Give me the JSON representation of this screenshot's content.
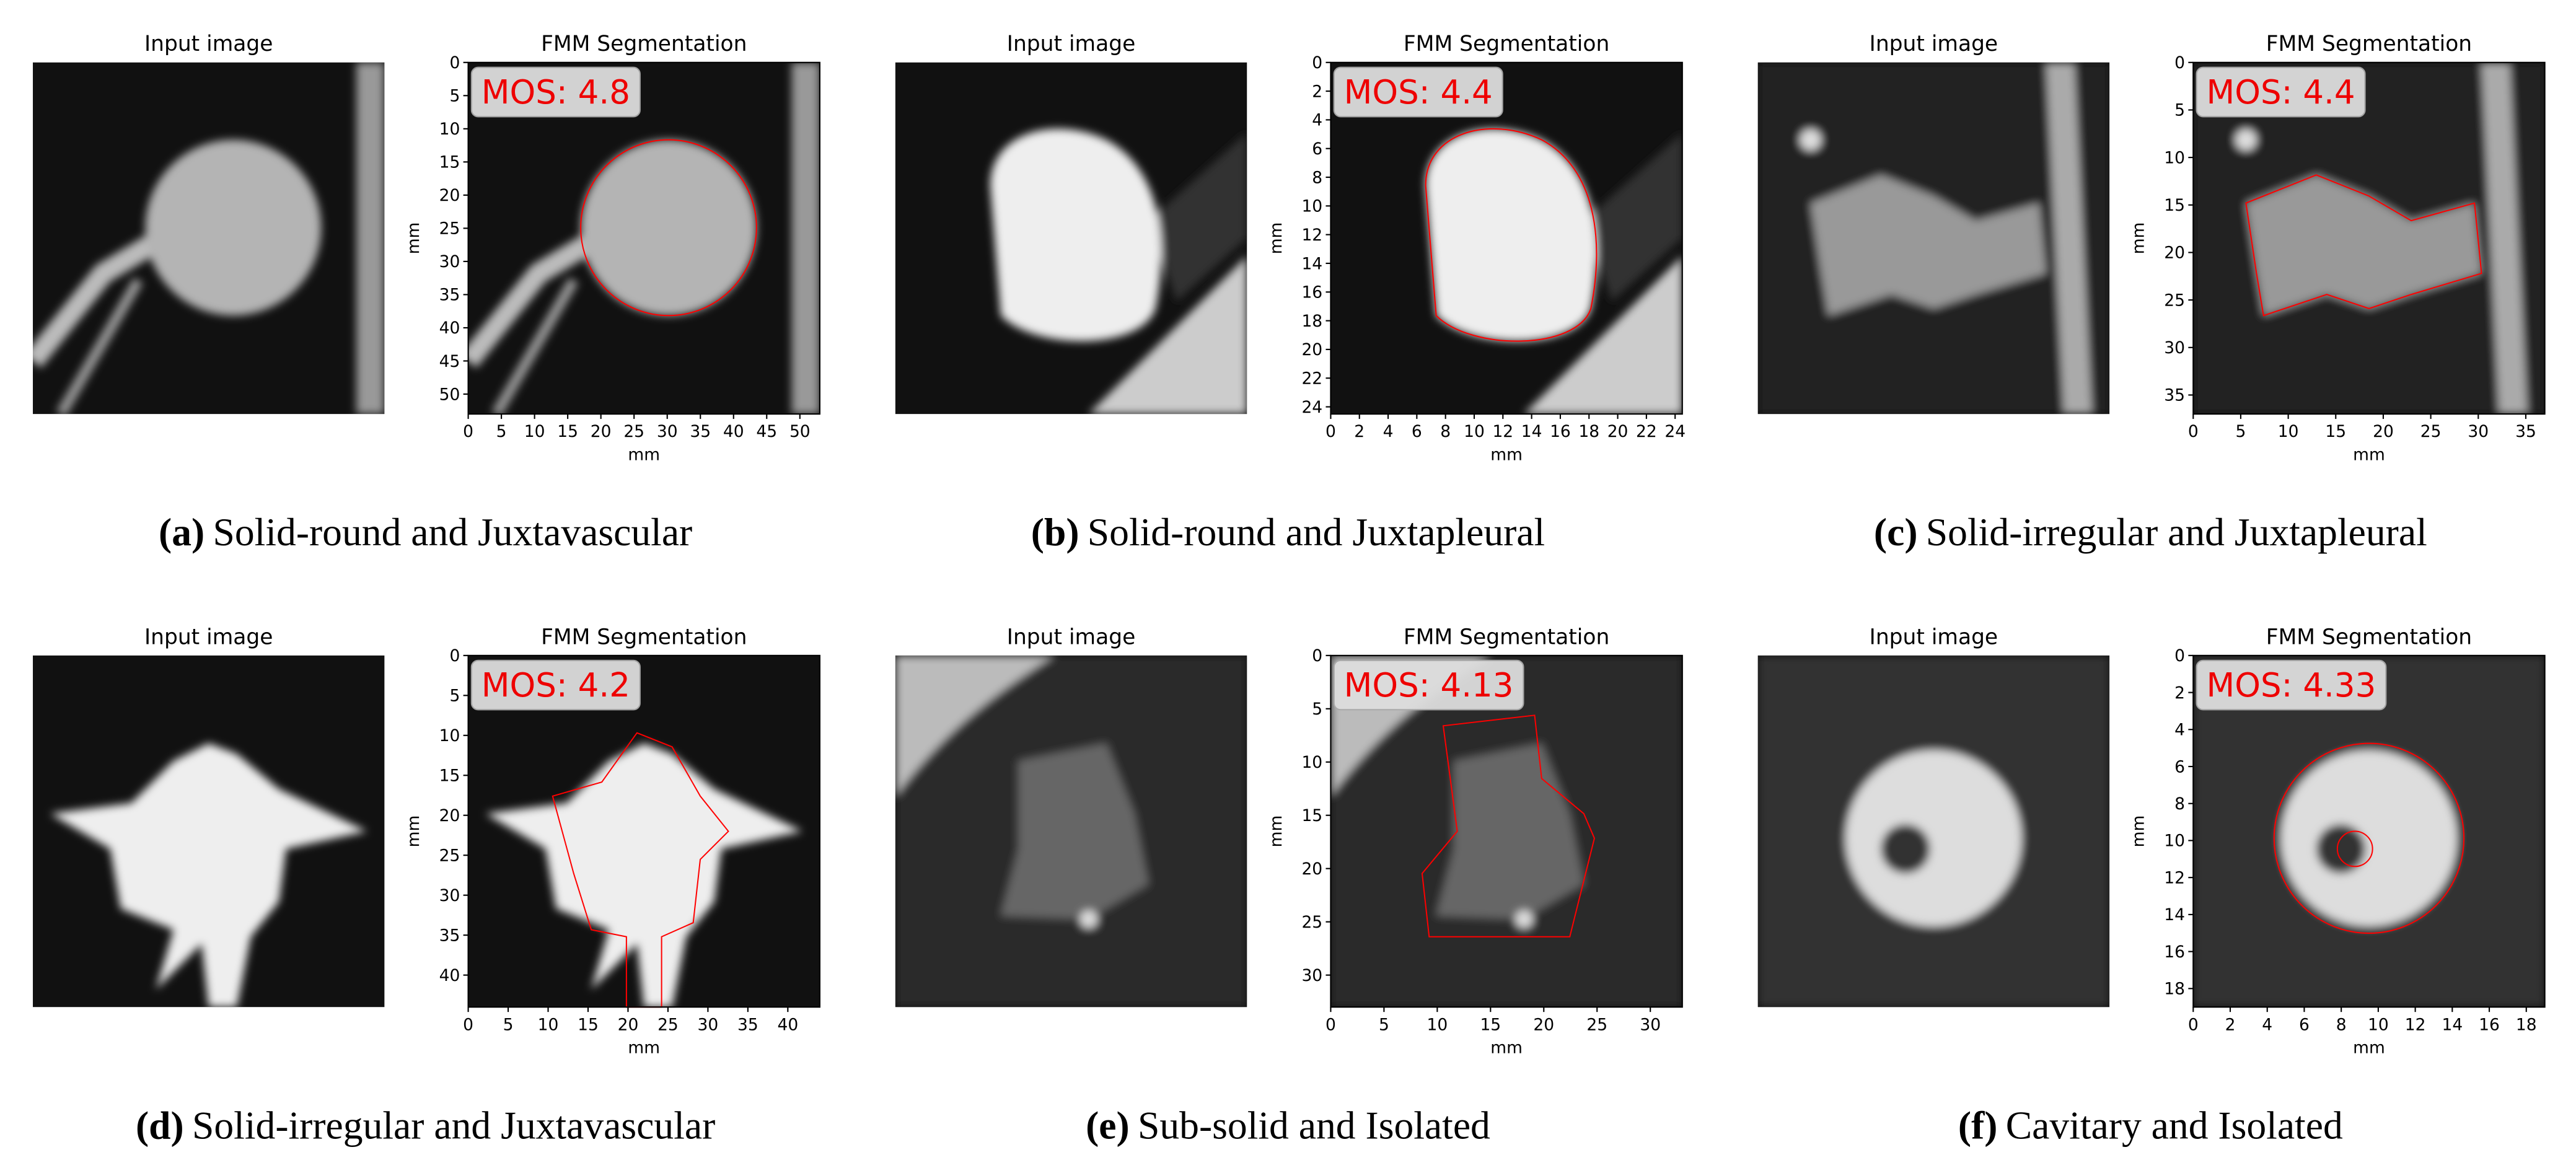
{
  "panels": [
    {
      "label": "(a)",
      "caption": "Solid-round and Juxtavascular",
      "input_title": "Input image",
      "seg_title": "FMM Segmentation",
      "mos": "MOS: 4.8",
      "x_axis_label": "mm",
      "y_axis_label": "mm",
      "xlim": [
        0,
        53
      ],
      "ylim": [
        0,
        53
      ],
      "xticks": [
        0,
        5,
        10,
        15,
        20,
        25,
        30,
        35,
        40,
        45,
        50
      ],
      "yticks": [
        0,
        5,
        10,
        15,
        20,
        25,
        30,
        35,
        40,
        45,
        50
      ]
    },
    {
      "label": "(b)",
      "caption": "Solid-round and Juxtapleural",
      "input_title": "Input image",
      "seg_title": "FMM Segmentation",
      "mos": "MOS: 4.4",
      "x_axis_label": "mm",
      "y_axis_label": "mm",
      "xlim": [
        0,
        24.5
      ],
      "ylim": [
        0,
        24.5
      ],
      "xticks": [
        0,
        2,
        4,
        6,
        8,
        10,
        12,
        14,
        16,
        18,
        20,
        22,
        24
      ],
      "yticks": [
        0,
        2,
        4,
        6,
        8,
        10,
        12,
        14,
        16,
        18,
        20,
        22,
        24
      ]
    },
    {
      "label": "(c)",
      "caption": "Solid-irregular and Juxtapleural",
      "input_title": "Input image",
      "seg_title": "FMM Segmentation",
      "mos": "MOS: 4.4",
      "x_axis_label": "mm",
      "y_axis_label": "mm",
      "xlim": [
        0,
        37
      ],
      "ylim": [
        0,
        37
      ],
      "xticks": [
        0,
        5,
        10,
        15,
        20,
        25,
        30,
        35
      ],
      "yticks": [
        0,
        5,
        10,
        15,
        20,
        25,
        30,
        35
      ]
    },
    {
      "label": "(d)",
      "caption": "Solid-irregular and Juxtavascular",
      "input_title": "Input image",
      "seg_title": "FMM Segmentation",
      "mos": "MOS: 4.2",
      "x_axis_label": "mm",
      "y_axis_label": "mm",
      "xlim": [
        0,
        44
      ],
      "ylim": [
        0,
        44
      ],
      "xticks": [
        0,
        5,
        10,
        15,
        20,
        25,
        30,
        35,
        40
      ],
      "yticks": [
        0,
        5,
        10,
        15,
        20,
        25,
        30,
        35,
        40
      ]
    },
    {
      "label": "(e)",
      "caption": "Sub-solid and Isolated",
      "input_title": "Input image",
      "seg_title": "FMM Segmentation",
      "mos": "MOS: 4.13",
      "x_axis_label": "mm",
      "y_axis_label": "mm",
      "xlim": [
        0,
        33
      ],
      "ylim": [
        0,
        33
      ],
      "xticks": [
        0,
        5,
        10,
        15,
        20,
        25,
        30
      ],
      "yticks": [
        0,
        5,
        10,
        15,
        20,
        25,
        30
      ]
    },
    {
      "label": "(f)",
      "caption": "Cavitary and Isolated",
      "input_title": "Input image",
      "seg_title": "FMM Segmentation",
      "mos": "MOS: 4.33",
      "x_axis_label": "mm",
      "y_axis_label": "mm",
      "xlim": [
        0,
        19
      ],
      "ylim": [
        0,
        19
      ],
      "xticks": [
        0,
        2,
        4,
        6,
        8,
        10,
        12,
        14,
        16,
        18
      ],
      "yticks": [
        0,
        2,
        4,
        6,
        8,
        10,
        12,
        14,
        16,
        18
      ]
    }
  ]
}
